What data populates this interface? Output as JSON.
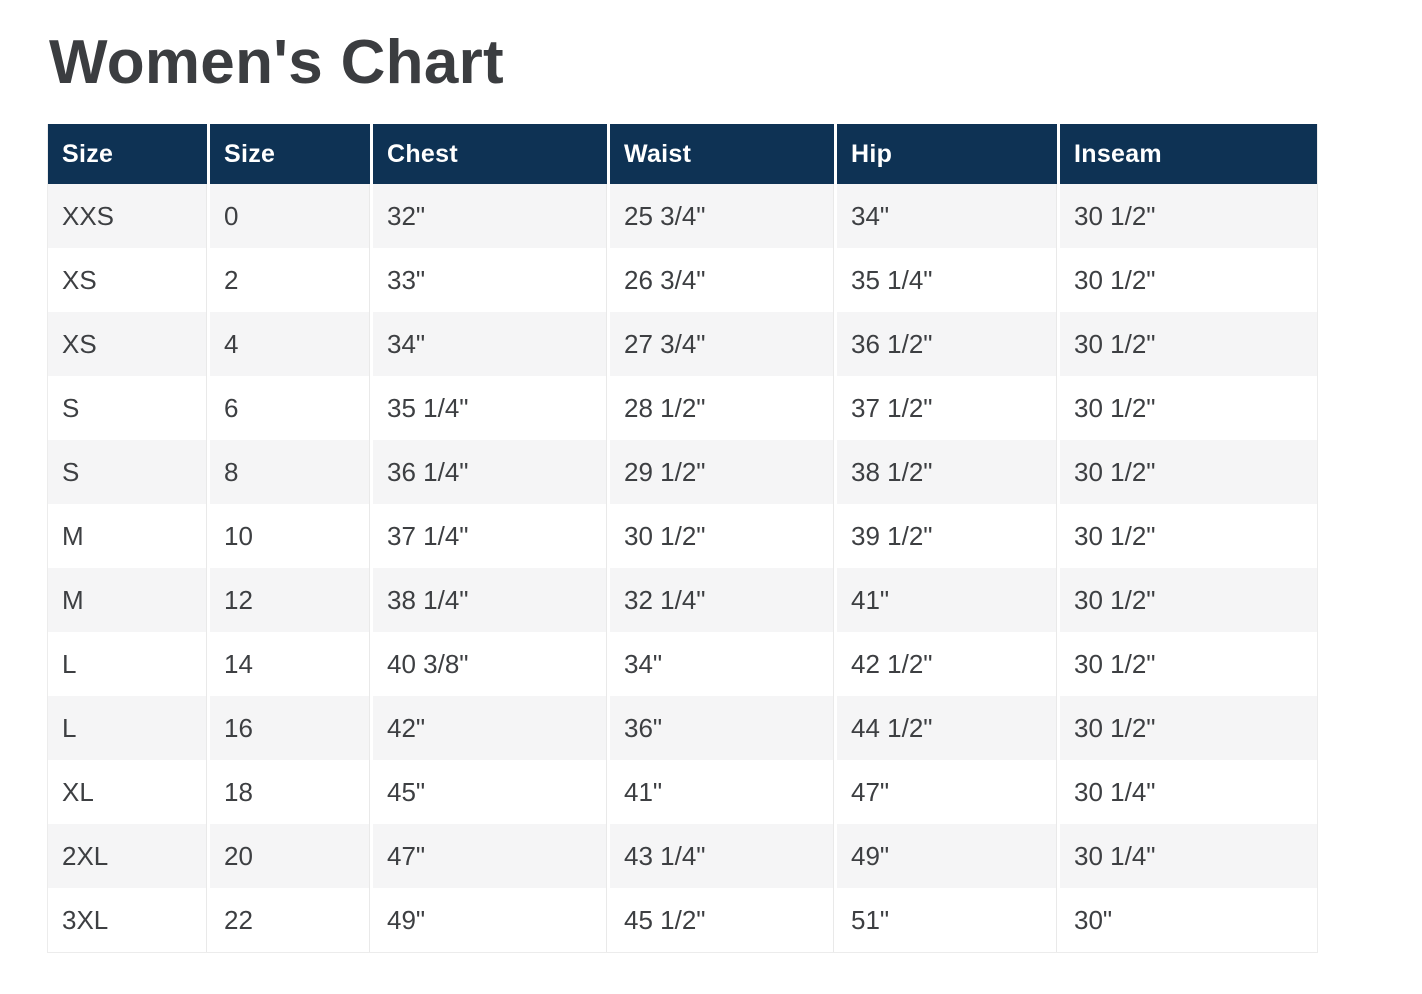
{
  "page": {
    "title": "Women's Chart",
    "background": "#ffffff"
  },
  "colors": {
    "title_text": "#3b3d40",
    "header_bg": "#0e3254",
    "header_text": "#ffffff",
    "stripe_row_bg": "#f5f5f6",
    "plain_row_bg": "#ffffff",
    "body_text": "#3d3f42",
    "cell_separator": "#e9e9e9",
    "outer_border": "#ececec"
  },
  "chart_data": {
    "type": "table",
    "title": "Women's Chart",
    "columns": [
      "Size",
      "Size",
      "Chest",
      "Waist",
      "Hip",
      "Inseam"
    ],
    "rows": [
      [
        "XXS",
        "0",
        "32\"",
        "25 3/4\"",
        "34\"",
        "30 1/2\""
      ],
      [
        "XS",
        "2",
        "33\"",
        "26 3/4\"",
        "35 1/4\"",
        "30 1/2\""
      ],
      [
        "XS",
        "4",
        "34\"",
        "27 3/4\"",
        "36 1/2\"",
        "30 1/2\""
      ],
      [
        "S",
        "6",
        "35 1/4\"",
        "28 1/2\"",
        "37 1/2\"",
        "30 1/2\""
      ],
      [
        "S",
        "8",
        "36 1/4\"",
        "29 1/2\"",
        "38 1/2\"",
        "30 1/2\""
      ],
      [
        "M",
        "10",
        "37 1/4\"",
        "30 1/2\"",
        "39 1/2\"",
        "30 1/2\""
      ],
      [
        "M",
        "12",
        "38 1/4\"",
        "32 1/4\"",
        "41\"",
        "30 1/2\""
      ],
      [
        "L",
        "14",
        "40 3/8\"",
        "34\"",
        "42 1/2\"",
        "30 1/2\""
      ],
      [
        "L",
        "16",
        "42\"",
        "36\"",
        "44 1/2\"",
        "30 1/2\""
      ],
      [
        "XL",
        "18",
        "45\"",
        "41\"",
        "47\"",
        "30 1/4\""
      ],
      [
        "2XL",
        "20",
        "47\"",
        "43 1/4\"",
        "49\"",
        "30 1/4\""
      ],
      [
        "3XL",
        "22",
        "49\"",
        "45 1/2\"",
        "51\"",
        "30\""
      ]
    ],
    "layout": {
      "header_position": "top",
      "striped_rows": true,
      "first_stripe": "odd"
    }
  }
}
